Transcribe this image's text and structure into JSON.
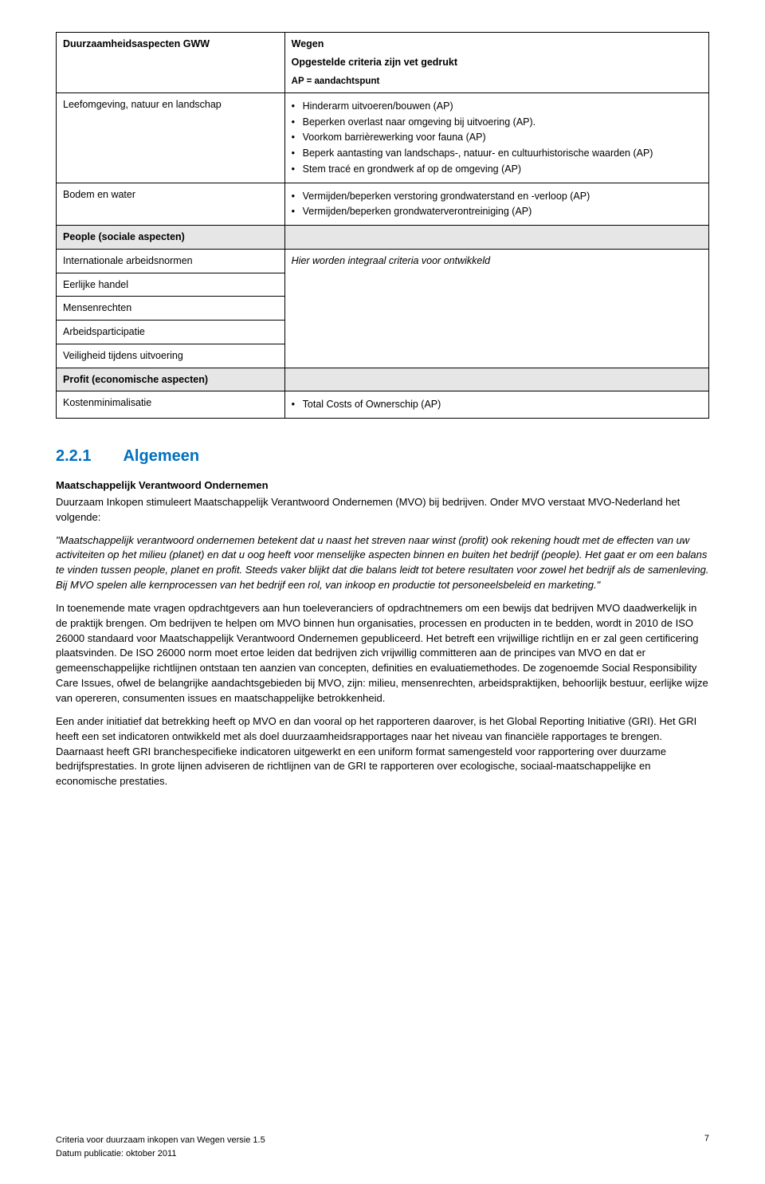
{
  "table": {
    "header": {
      "left": "Duurzaamheidsaspecten GWW",
      "right_title": "Wegen",
      "right_sub_pre": "Opgestelde criteria zijn ",
      "right_sub_bold": "vet",
      "right_sub_post": " gedrukt",
      "ap_note": "AP = aandachtspunt"
    },
    "rows": [
      {
        "left": "Leefomgeving, natuur en landschap",
        "right_bullets": [
          "Hinderarm uitvoeren/bouwen (AP)",
          "Beperken overlast naar omgeving bij uitvoering (AP).",
          "Voorkom barrièrewerking voor fauna (AP)",
          "Beperk aantasting van landschaps-, natuur- en cultuurhistorische waarden (AP)",
          "Stem tracé en grondwerk af op de omgeving (AP)"
        ]
      },
      {
        "left": "Bodem en water",
        "right_bullets": [
          "Vermijden/beperken verstoring grondwaterstand en -verloop (AP)",
          "Vermijden/beperken grondwaterverontreiniging (AP)"
        ]
      }
    ],
    "people_head": "People (sociale aspecten)",
    "intl_left": "Internationale arbeidsnormen",
    "intl_right_italic": "Hier worden integraal criteria voor ontwikkeld",
    "merged_left_items": [
      "Eerlijke handel",
      "Mensenrechten",
      "Arbeidsparticipatie",
      "Veiligheid tijdens uitvoering"
    ],
    "profit_head": "Profit (economische aspecten)",
    "kosten_left": "Kostenminimalisatie",
    "kosten_right_bullets": [
      "Total Costs of Ownerschip (AP)"
    ]
  },
  "section": {
    "num": "2.2.1",
    "title": "Algemeen",
    "mvo_head": "Maatschappelijk Verantwoord Ondernemen",
    "p1": "Duurzaam Inkopen stimuleert Maatschappelijk Verantwoord Ondernemen (MVO) bij bedrijven. Onder MVO verstaat MVO-Nederland het volgende:",
    "quote": "\"Maatschappelijk verantwoord ondernemen betekent dat u naast het streven naar winst (profit) ook rekening houdt met de effecten van uw activiteiten op het milieu (planet) en dat u oog heeft voor menselijke aspecten binnen en buiten het bedrijf (people). Het gaat er om een balans te vinden tussen people, planet en profit. Steeds vaker blijkt dat die balans leidt tot betere resultaten voor zowel het bedrijf als de samenleving. Bij MVO spelen alle kernprocessen van het bedrijf een rol, van inkoop en productie tot personeelsbeleid en marketing.\"",
    "p2": "In toenemende mate vragen opdrachtgevers aan hun toeleveranciers of opdrachtnemers om een bewijs dat bedrijven MVO daadwerkelijk in de praktijk brengen. Om bedrijven te helpen om MVO binnen hun organisaties, processen en producten in te bedden, wordt in 2010 de ISO 26000 standaard voor Maatschappelijk Verantwoord Ondernemen gepubliceerd. Het betreft een vrijwillige richtlijn en er zal geen certificering plaatsvinden. De ISO 26000 norm moet ertoe leiden dat bedrijven zich vrijwillig committeren aan de principes van MVO en dat er gemeenschappelijke richtlijnen ontstaan ten aanzien van concepten, definities en evaluatiemethodes. De zogenoemde Social Responsibility Care Issues, ofwel de belangrijke aandachtsgebieden bij MVO, zijn: milieu, mensenrechten, arbeidspraktijken, behoorlijk bestuur, eerlijke wijze van opereren, consumenten issues en maatschappelijke betrokkenheid.",
    "p3": "Een ander initiatief dat betrekking heeft op MVO en dan vooral op het rapporteren daarover, is het Global Reporting Initiative (GRI). Het GRI heeft een set indicatoren ontwikkeld met als doel duurzaamheidsrapportages naar het niveau van financiële rapportages te brengen. Daarnaast heeft GRI branchespecifieke indicatoren uitgewerkt en een uniform format samengesteld voor rapportering over duurzame bedrijfsprestaties. In grote lijnen adviseren de richtlijnen van de GRI te rapporteren over ecologische, sociaal-maatschappelijke en economische prestaties."
  },
  "footer": {
    "left1": "Criteria voor duurzaam inkopen van Wegen versie 1.5",
    "left2": "Datum publicatie: oktober 2011",
    "page": "7"
  },
  "colors": {
    "heading": "#0070c0",
    "shade": "#e6e6e6"
  }
}
